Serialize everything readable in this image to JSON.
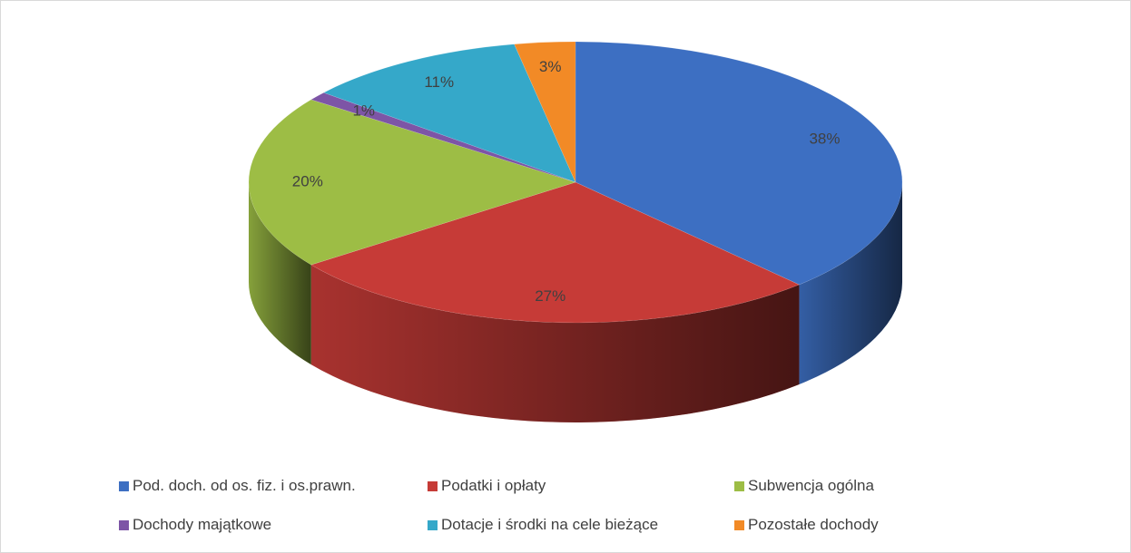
{
  "chart_data": {
    "type": "pie3d",
    "categories": [
      "Pod. doch. od os. fiz. i os.prawn.",
      "Podatki i opłaty",
      "Subwencja ogólna",
      "Dochody majątkowe",
      "Dotacje i środki na cele bieżące",
      "Pozostałe dochody"
    ],
    "values": [
      38,
      27,
      20,
      1,
      11,
      3
    ],
    "value_labels": [
      "38%",
      "27%",
      "20%",
      "1%",
      "11%",
      "3%"
    ],
    "colors": [
      "#3d6fc2",
      "#c63b37",
      "#9dbd45",
      "#7d55a6",
      "#35a8c9",
      "#f28a26"
    ],
    "legend": "bottom"
  }
}
